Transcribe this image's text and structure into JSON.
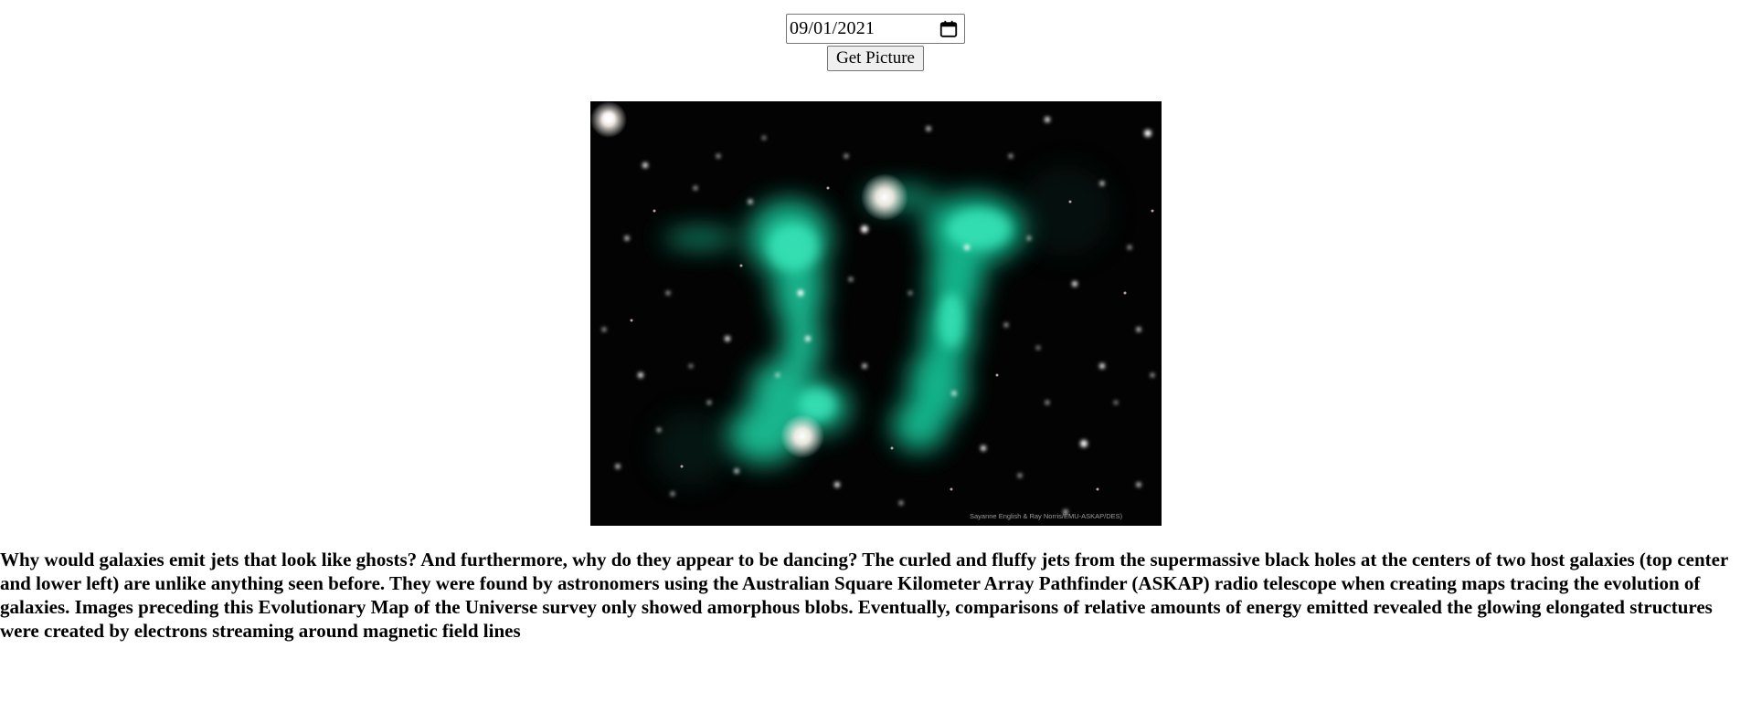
{
  "controls": {
    "date_value": "09/01/2021",
    "button_label": "Get Picture",
    "calendar_icon": "calendar-icon"
  },
  "picture": {
    "credit": "Sayanne English & Ray Norris/EMU-ASKAP/DES)",
    "colors": {
      "background": "#000000",
      "jet": "#1fe0b0",
      "star": "#ffffff"
    }
  },
  "explanation": "Why would galaxies emit jets that look like ghosts? And furthermore, why do they appear to be dancing? The curled and fluffy jets from the supermassive black holes at the centers of two host galaxies (top center and lower left) are unlike anything seen before. They were found by astronomers using the Australian Square Kilometer Array Pathfinder (ASKAP) radio telescope when creating maps tracing the evolution of galaxies. Images preceding this Evolutionary Map of the Universe survey only showed amorphous blobs. Eventually, comparisons of relative amounts of energy emitted revealed the glowing elongated structures were created by electrons streaming around magnetic field lines"
}
